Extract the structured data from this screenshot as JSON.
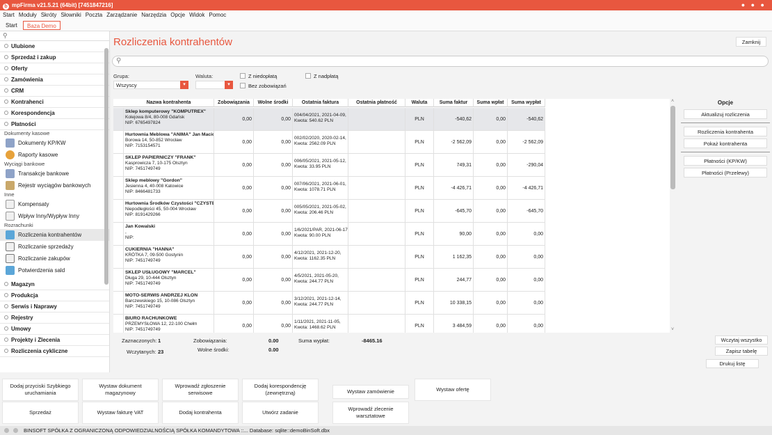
{
  "window": {
    "title": "mpFirma v21.5.21 (64bit) [7451847216]"
  },
  "menu": [
    "Start",
    "Moduły",
    "Skróty",
    "Słowniki",
    "Poczta",
    "Zarządzanie",
    "Narzędzia",
    "Opcje",
    "Widok",
    "Pomoc"
  ],
  "tabs": {
    "start": "Start",
    "baza": "Baza Demo"
  },
  "sidebar": {
    "categories_top": [
      "Ulubione",
      "Sprzedaż i zakup",
      "Oferty",
      "Zamówienia",
      "CRM",
      "Kontrahenci",
      "Korespondencja",
      "Płatności"
    ],
    "groups": {
      "kasowe": "Dokumenty kasowe",
      "bankowe": "Wyciągi bankowe",
      "inne": "Inne",
      "rozrachunki": "Rozrachunki"
    },
    "items": {
      "dokumenty_kpkw": "Dokumenty KP/KW",
      "raporty_kasowe": "Raporty kasowe",
      "transakcje_bankowe": "Transakcje bankowe",
      "rejestr_wyciagow": "Rejestr wyciągów bankowych",
      "kompensaty": "Kompensaty",
      "wplyw_inny": "Wpływ Inny/Wypływ Inny",
      "rozliczenia_kontrahentow": "Rozliczenia kontrahentów",
      "rozliczanie_sprzedazy": "Rozliczanie sprzedaży",
      "rozliczanie_zakupow": "Rozliczanie zakupów",
      "potwierdzenia_sald": "Potwierdzenia sald"
    },
    "categories_bottom": [
      "Magazyn",
      "Produkcja",
      "Serwis i Naprawy",
      "Rejestry",
      "Umowy",
      "Projekty i Zlecenia",
      "Rozliczenia cykliczne"
    ]
  },
  "main": {
    "title": "Rozliczenia kontrahentów",
    "close": "Zamknij",
    "grupa_label": "Grupa:",
    "grupa_value": "Wszyscy",
    "waluta_label": "Waluta:",
    "waluta_value": "",
    "z_niedoplata": "Z niedopłatą",
    "z_nadplata": "Z nadpłatą",
    "bez_zobowiazan": "Bez zobowiązań"
  },
  "table": {
    "columns": [
      "Nazwa kontrahenta",
      "Zobowiązania",
      "Wolne środki",
      "Ostatnia faktura",
      "Ostatnia płatność",
      "Waluta",
      "Suma faktur",
      "Suma wpłat",
      "Suma wypłat"
    ],
    "rows": [
      {
        "name": "Sklep komputerowy \"KOMPUTREX\"",
        "addr": "Kolejowa 8/4, 80-008 Gdańsk",
        "nip": "NIP: 6765497824",
        "zob": "0,00",
        "wolne": "0,00",
        "inv1": "004/04/2021, 2021-04-09,",
        "inv2": "Kwota: 540.62 PLN",
        "last_pay": "",
        "cur": "PLN",
        "faktur": "-540,62",
        "wplat": "0,00",
        "wyplat": "-540,62"
      },
      {
        "name": "Hurtownia Meblowa \"ANIMA\" Jan Maciocha",
        "addr": "Borowa 14, 50-852 Wrocław",
        "nip": "NIP: 7153154571",
        "zob": "0,00",
        "wolne": "0,00",
        "inv1": "002/02/2020, 2020-02-14,",
        "inv2": "Kwota: 2562.09 PLN",
        "last_pay": "",
        "cur": "PLN",
        "faktur": "-2 562,09",
        "wplat": "0,00",
        "wyplat": "-2 562,09"
      },
      {
        "name": "SKLEP PAPIERNICZY \"FRANK\"",
        "addr": "Kasprowicza 7, 10-175 Olsztyn",
        "nip": "NIP: 7451749749",
        "zob": "0,00",
        "wolne": "0,00",
        "inv1": "006/05/2021, 2021-05-12,",
        "inv2": "Kwota: 33.95 PLN",
        "last_pay": "",
        "cur": "PLN",
        "faktur": "749,31",
        "wplat": "0,00",
        "wyplat": "-290,04"
      },
      {
        "name": "Sklep meblowy \"Gordon\"",
        "addr": "Jesienna 4, 40-008 Katowice",
        "nip": "NIP: 8466481733",
        "zob": "0,00",
        "wolne": "0,00",
        "inv1": "007/06/2021, 2021-06-01,",
        "inv2": "Kwota: 1078.71 PLN",
        "last_pay": "",
        "cur": "PLN",
        "faktur": "-4 426,71",
        "wplat": "0,00",
        "wyplat": "-4 426,71"
      },
      {
        "name": "Hurtownia Środków Czystości \"CZYSTEK\"",
        "addr": "Niepodległości 45, 50-004 Wrocław",
        "nip": "NIP: 8191429266",
        "zob": "0,00",
        "wolne": "0,00",
        "inv1": "005/05/2021, 2021-05-02,",
        "inv2": "Kwota: 206.46 PLN",
        "last_pay": "",
        "cur": "PLN",
        "faktur": "-645,70",
        "wplat": "0,00",
        "wyplat": "-645,70"
      },
      {
        "name": "Jan Kowalski",
        "addr": ",",
        "nip": "NIP:",
        "zob": "0,00",
        "wolne": "0,00",
        "inv1": "1/6/2021/PAR, 2021-06-17,",
        "inv2": "Kwota: 90.00 PLN",
        "last_pay": "",
        "cur": "PLN",
        "faktur": "90,00",
        "wplat": "0,00",
        "wyplat": "0,00"
      },
      {
        "name": "CUKIERNIA \"HANNA\"",
        "addr": "KRÓTKA 7, 09-500 Gostynin",
        "nip": "NIP: 7451749749",
        "zob": "0,00",
        "wolne": "0,00",
        "inv1": "4/12/2021, 2021-12-20,",
        "inv2": "Kwota: 1162.35 PLN",
        "last_pay": "",
        "cur": "PLN",
        "faktur": "1 162,35",
        "wplat": "0,00",
        "wyplat": "0,00"
      },
      {
        "name": "SKLEP USŁUGOWY \"MARCEL\"",
        "addr": "Długa 29, 10-444 Olsztyn",
        "nip": "NIP: 7451749749",
        "zob": "0,00",
        "wolne": "0,00",
        "inv1": "4/5/2021, 2021-05-20,",
        "inv2": "Kwota: 244.77 PLN",
        "last_pay": "",
        "cur": "PLN",
        "faktur": "244,77",
        "wplat": "0,00",
        "wyplat": "0,00"
      },
      {
        "name": "MOTO-SERWIS ANDRZEJ KLON",
        "addr": "Barczewskiego 15, 10-086 Olsztyn",
        "nip": "NIP: 7451749749",
        "zob": "0,00",
        "wolne": "0,00",
        "inv1": "3/12/2021, 2021-12-14,",
        "inv2": "Kwota: 244.77 PLN",
        "last_pay": "",
        "cur": "PLN",
        "faktur": "10 338,15",
        "wplat": "0,00",
        "wyplat": "0,00"
      },
      {
        "name": "BIURO RACHUNKOWE",
        "addr": "PRZEMYSŁOWA 12, 22-100 Chełm",
        "nip": "NIP: 7451749749",
        "zob": "0,00",
        "wolne": "0,00",
        "inv1": "1/11/2021, 2021-11-05,",
        "inv2": "Kwota: 1468.62 PLN",
        "last_pay": "",
        "cur": "PLN",
        "faktur": "3 484,59",
        "wplat": "0,00",
        "wyplat": "0,00"
      }
    ]
  },
  "options": {
    "header": "Opcje",
    "aktualizuj": "Aktualizuj rozliczenia",
    "rozliczenia_kontrahenta": "Rozliczenia kontrahenta",
    "pokaz_kontrahenta": "Pokaż kontrahenta",
    "platnosci_kpkw": "Płatności (KP/KW)",
    "platnosci_przelewy": "Płatności (Przelewy)"
  },
  "footer": {
    "zaznaczonych_label": "Zaznaczonych:",
    "zaznaczonych_value": "1",
    "wczytanych_label": "Wczytanych:",
    "wczytanych_value": "23",
    "zobowiazania_label": "Zobowiązania:",
    "zobowiazania_value": "0.00",
    "wolne_label": "Wolne środki:",
    "wolne_value": "0.00",
    "suma_wyplat_label": "Suma wypłat:",
    "suma_wyplat_value": "-8465.16",
    "wczytaj": "Wczytaj wszystko",
    "zapisz": "Zapisz tabelę",
    "drukuj": "Drukuj listę"
  },
  "quick": [
    {
      "label": "Dodaj przyciski Szybkiego uruchamiania"
    },
    {
      "label": "Wystaw dokument magazynowy"
    },
    {
      "label": "Wprowadź zgłoszenie serwisowe"
    },
    {
      "label": "Dodaj korespondencję (zewnętrzną)"
    },
    {
      "label": "Wystaw zamówienie"
    },
    {
      "label": "Wystaw ofertę"
    },
    {
      "label": "Sprzedaż"
    },
    {
      "label": "Wystaw fakturę VAT"
    },
    {
      "label": "Dodaj kontrahenta"
    },
    {
      "label": "Utwórz zadanie"
    },
    {
      "label": "Wprowadź zlecenie warsztatowe"
    }
  ],
  "status": "BINSOFT SPÓŁKA Z OGRANICZONĄ ODPOWIEDZIALNOŚCIĄ SPÓŁKA KOMANDYTOWA ::... Database: sqlite::demoBinSoft.dbx",
  "colors": {
    "accent": "#e8573f"
  }
}
